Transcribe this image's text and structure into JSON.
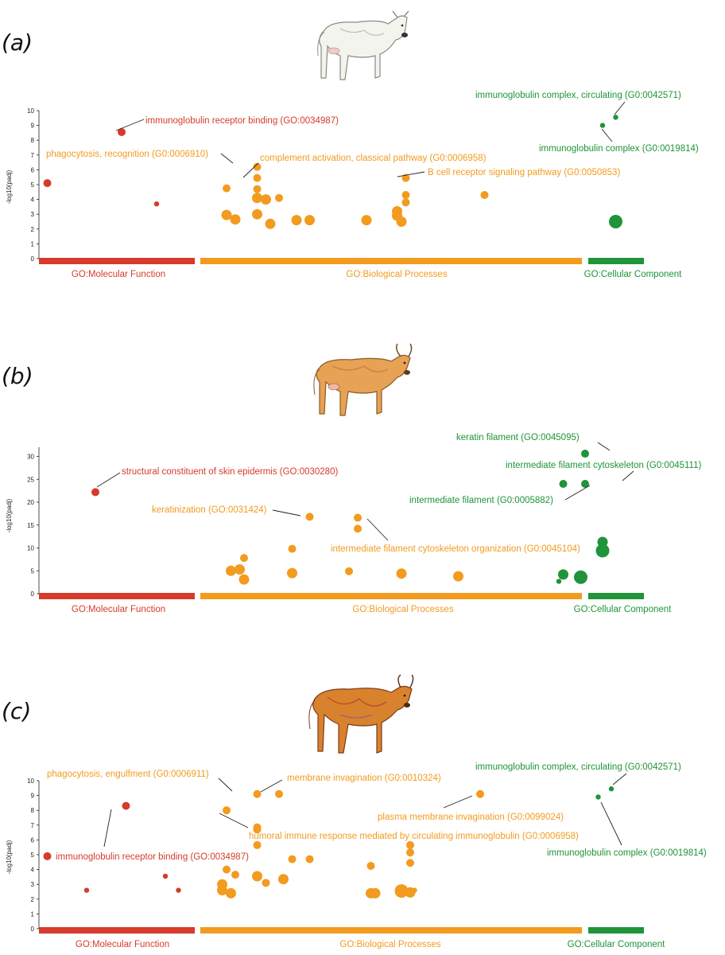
{
  "colors": {
    "molecular_function": "#d63b2c",
    "biological_processes": "#f29b1f",
    "cellular_component": "#1f9438"
  },
  "panels": [
    {
      "letter": "(a)",
      "icon": "white-cow-illustration",
      "ylabel": "-log10(padj)",
      "categories": [
        "GO:Molecular Function",
        "GO:Biological Processes",
        "GO:Cellular Component"
      ]
    },
    {
      "letter": "(b)",
      "icon": "tan-horned-cow-illustration",
      "ylabel": "-log10(padj)",
      "categories": [
        "GO:Molecular Function",
        "GO:Biological Processes",
        "GO:Cellular Component"
      ]
    },
    {
      "letter": "(c)",
      "icon": "red-brown-cow-illustration",
      "ylabel": "-log10(padj)",
      "categories": [
        "GO:Molecular Function",
        "GO:Biological Processes",
        "GO:Cellular Component"
      ]
    }
  ],
  "chart_data": [
    {
      "type": "scatter",
      "title": "",
      "ylabel": "-log10(padj)",
      "ylim": [
        0,
        10
      ],
      "yticks": [
        0,
        1,
        2,
        3,
        4,
        5,
        6,
        7,
        8,
        9,
        10
      ],
      "grid": false,
      "x_categories": [
        "GO:Molecular Function",
        "GO:Biological Processes",
        "GO:Cellular Component"
      ],
      "series": [
        {
          "category": "GO:Molecular Function",
          "points": [
            {
              "x": 1,
              "y": 5.1,
              "size": "medium"
            },
            {
              "x": 18,
              "y": 8.55,
              "size": "medium"
            },
            {
              "x": 26,
              "y": 3.7,
              "size": "small"
            }
          ]
        },
        {
          "category": "GO:Biological Processes",
          "points": [
            {
              "x": 42,
              "y": 4.75,
              "size": "medium"
            },
            {
              "x": 42,
              "y": 2.95,
              "size": "large"
            },
            {
              "x": 44,
              "y": 2.65,
              "size": "large"
            },
            {
              "x": 49,
              "y": 6.2,
              "size": "medium"
            },
            {
              "x": 49,
              "y": 5.45,
              "size": "medium"
            },
            {
              "x": 49,
              "y": 4.7,
              "size": "medium"
            },
            {
              "x": 49,
              "y": 4.1,
              "size": "large"
            },
            {
              "x": 49,
              "y": 3.0,
              "size": "large"
            },
            {
              "x": 51,
              "y": 4.0,
              "size": "large"
            },
            {
              "x": 52,
              "y": 2.35,
              "size": "large"
            },
            {
              "x": 54,
              "y": 4.1,
              "size": "medium"
            },
            {
              "x": 58,
              "y": 2.6,
              "size": "large"
            },
            {
              "x": 61,
              "y": 2.6,
              "size": "large"
            },
            {
              "x": 74,
              "y": 2.6,
              "size": "large"
            },
            {
              "x": 81,
              "y": 3.2,
              "size": "large"
            },
            {
              "x": 81,
              "y": 2.9,
              "size": "large"
            },
            {
              "x": 82,
              "y": 2.5,
              "size": "large"
            },
            {
              "x": 83,
              "y": 5.45,
              "size": "medium"
            },
            {
              "x": 83,
              "y": 4.3,
              "size": "medium"
            },
            {
              "x": 83,
              "y": 3.8,
              "size": "medium"
            },
            {
              "x": 101,
              "y": 4.3,
              "size": "medium"
            }
          ]
        },
        {
          "category": "GO:Cellular Component",
          "points": [
            {
              "x": 128,
              "y": 9.0,
              "size": "small"
            },
            {
              "x": 131,
              "y": 9.55,
              "size": "small"
            },
            {
              "x": 131,
              "y": 2.5,
              "size": "xlarge"
            }
          ]
        }
      ],
      "annotations": [
        {
          "text": "immunoglobulin receptor binding (GO:0034987)",
          "category": "GO:Molecular Function",
          "point": [
            18,
            8.55
          ]
        },
        {
          "text": "phagocytosis, recognition (G0:0006910)",
          "category": "GO:Biological Processes",
          "point": [
            49,
            6.2
          ]
        },
        {
          "text": "complement activation, classical pathway (G0:0006958)",
          "category": "GO:Biological Processes",
          "point": [
            49,
            5.45
          ]
        },
        {
          "text": "B cell receptor signaling pathway (G0:0050853)",
          "category": "GO:Biological Processes",
          "point": [
            83,
            5.45
          ]
        },
        {
          "text": "immunoglobulin complex, circulating (G0:0042571)",
          "category": "GO:Cellular Component",
          "point": [
            131,
            9.55
          ]
        },
        {
          "text": "immunoglobulin complex (G0:0019814)",
          "category": "GO:Cellular Component",
          "point": [
            128,
            9.0
          ]
        }
      ]
    },
    {
      "type": "scatter",
      "title": "",
      "ylabel": "-log10(padj)",
      "ylim": [
        0,
        32
      ],
      "yticks": [
        0,
        5,
        10,
        15,
        20,
        25,
        30
      ],
      "grid": false,
      "x_categories": [
        "GO:Molecular Function",
        "GO:Biological Processes",
        "GO:Cellular Component"
      ],
      "series": [
        {
          "category": "GO:Molecular Function",
          "points": [
            {
              "x": 12,
              "y": 22.2,
              "size": "medium"
            }
          ]
        },
        {
          "category": "GO:Biological Processes",
          "points": [
            {
              "x": 43,
              "y": 5.0,
              "size": "large"
            },
            {
              "x": 45,
              "y": 5.3,
              "size": "large"
            },
            {
              "x": 46,
              "y": 3.1,
              "size": "large"
            },
            {
              "x": 46,
              "y": 7.8,
              "size": "medium"
            },
            {
              "x": 57,
              "y": 9.8,
              "size": "medium"
            },
            {
              "x": 57,
              "y": 4.5,
              "size": "large"
            },
            {
              "x": 61,
              "y": 16.8,
              "size": "medium"
            },
            {
              "x": 70,
              "y": 4.9,
              "size": "medium"
            },
            {
              "x": 72,
              "y": 16.6,
              "size": "medium"
            },
            {
              "x": 72,
              "y": 14.2,
              "size": "medium"
            },
            {
              "x": 82,
              "y": 4.4,
              "size": "large"
            },
            {
              "x": 95,
              "y": 3.8,
              "size": "large"
            }
          ]
        },
        {
          "category": "GO:Cellular Component",
          "points": [
            {
              "x": 118,
              "y": 2.7,
              "size": "small"
            },
            {
              "x": 119,
              "y": 4.2,
              "size": "large"
            },
            {
              "x": 119,
              "y": 24.0,
              "size": "medium"
            },
            {
              "x": 123,
              "y": 3.6,
              "size": "xlarge"
            },
            {
              "x": 124,
              "y": 30.6,
              "size": "medium"
            },
            {
              "x": 124,
              "y": 24.0,
              "size": "medium"
            },
            {
              "x": 128,
              "y": 11.3,
              "size": "large"
            },
            {
              "x": 128,
              "y": 9.4,
              "size": "xlarge"
            }
          ]
        }
      ],
      "annotations": [
        {
          "text": "structural constituent of skin epidermis (GO:0030280)",
          "category": "GO:Molecular Function",
          "point": [
            12,
            22.2
          ]
        },
        {
          "text": "keratinization (GO:0031424)",
          "category": "GO:Biological Processes",
          "point": [
            61,
            16.8
          ]
        },
        {
          "text": "intermediate filament cytoskeleton organization (G0:0045104)",
          "category": "GO:Biological Processes",
          "point": [
            72,
            14.2
          ]
        },
        {
          "text": "keratin filament (GO:0045095)",
          "category": "GO:Cellular Component",
          "point": [
            124,
            30.6
          ]
        },
        {
          "text": "intermediate filament cytoskeleton (G0:0045111)",
          "category": "GO:Cellular Component",
          "point": [
            124,
            24.0
          ]
        },
        {
          "text": "intermediate filament (G0:0005882)",
          "category": "GO:Cellular Component",
          "point": [
            119,
            24.0
          ]
        }
      ]
    },
    {
      "type": "scatter",
      "title": "",
      "ylabel": "-log10(padj)",
      "ylim": [
        0,
        10
      ],
      "yticks": [
        0,
        1,
        2,
        3,
        4,
        5,
        6,
        7,
        8,
        9,
        10
      ],
      "grid": false,
      "x_categories": [
        "GO:Molecular Function",
        "GO:Biological Processes",
        "GO:Cellular Component"
      ],
      "series": [
        {
          "category": "GO:Molecular Function",
          "points": [
            {
              "x": 1,
              "y": 4.9,
              "size": "medium"
            },
            {
              "x": 10,
              "y": 2.6,
              "size": "small"
            },
            {
              "x": 19,
              "y": 8.3,
              "size": "medium"
            },
            {
              "x": 28,
              "y": 3.55,
              "size": "small"
            },
            {
              "x": 31,
              "y": 2.6,
              "size": "small"
            }
          ]
        },
        {
          "category": "GO:Biological Processes",
          "points": [
            {
              "x": 41,
              "y": 3.0,
              "size": "large"
            },
            {
              "x": 41,
              "y": 2.6,
              "size": "large"
            },
            {
              "x": 42,
              "y": 8.0,
              "size": "medium"
            },
            {
              "x": 42,
              "y": 4.0,
              "size": "medium"
            },
            {
              "x": 43,
              "y": 2.4,
              "size": "large"
            },
            {
              "x": 44,
              "y": 3.65,
              "size": "medium"
            },
            {
              "x": 49,
              "y": 9.1,
              "size": "medium"
            },
            {
              "x": 49,
              "y": 6.85,
              "size": "medium"
            },
            {
              "x": 49,
              "y": 6.7,
              "size": "medium"
            },
            {
              "x": 49,
              "y": 5.65,
              "size": "medium"
            },
            {
              "x": 49,
              "y": 3.55,
              "size": "large"
            },
            {
              "x": 51,
              "y": 3.1,
              "size": "medium"
            },
            {
              "x": 54,
              "y": 9.1,
              "size": "medium"
            },
            {
              "x": 55,
              "y": 3.35,
              "size": "large"
            },
            {
              "x": 57,
              "y": 4.7,
              "size": "medium"
            },
            {
              "x": 61,
              "y": 4.7,
              "size": "medium"
            },
            {
              "x": 75,
              "y": 4.25,
              "size": "medium"
            },
            {
              "x": 75,
              "y": 2.4,
              "size": "large"
            },
            {
              "x": 76,
              "y": 2.4,
              "size": "large"
            },
            {
              "x": 82,
              "y": 2.55,
              "size": "xlarge"
            },
            {
              "x": 84,
              "y": 5.65,
              "size": "medium"
            },
            {
              "x": 84,
              "y": 5.15,
              "size": "medium"
            },
            {
              "x": 84,
              "y": 4.45,
              "size": "medium"
            },
            {
              "x": 84,
              "y": 2.45,
              "size": "large"
            },
            {
              "x": 85,
              "y": 2.6,
              "size": "small"
            },
            {
              "x": 100,
              "y": 9.1,
              "size": "medium"
            }
          ]
        },
        {
          "category": "GO:Cellular Component",
          "points": [
            {
              "x": 127,
              "y": 8.9,
              "size": "small"
            },
            {
              "x": 130,
              "y": 9.45,
              "size": "small"
            }
          ]
        }
      ],
      "annotations": [
        {
          "text": "immunoglobulin receptor binding (GO:0034987)",
          "category": "GO:Molecular Function",
          "point": [
            19,
            8.3
          ]
        },
        {
          "text": "phagocytosis, engulfment (G0:0006911)",
          "category": "GO:Biological Processes",
          "point": [
            49,
            9.1
          ]
        },
        {
          "text": "membrane invagination (G0:0010324)",
          "category": "GO:Biological Processes",
          "point": [
            54,
            9.1
          ]
        },
        {
          "text": "plasma membrane invagination (G0:0099024)",
          "category": "GO:Biological Processes",
          "point": [
            100,
            9.1
          ]
        },
        {
          "text": "humoral immune response mediated by circulating immunoglobulin (G0:0006958)",
          "category": "GO:Biological Processes",
          "point": [
            42,
            8.0
          ]
        },
        {
          "text": "immunoglobulin complex, circulating (G0:0042571)",
          "category": "GO:Cellular Component",
          "point": [
            130,
            9.45
          ]
        },
        {
          "text": "immunoglobulin complex (G0:0019814)",
          "category": "GO:Cellular Component",
          "point": [
            127,
            8.9
          ]
        }
      ]
    }
  ]
}
